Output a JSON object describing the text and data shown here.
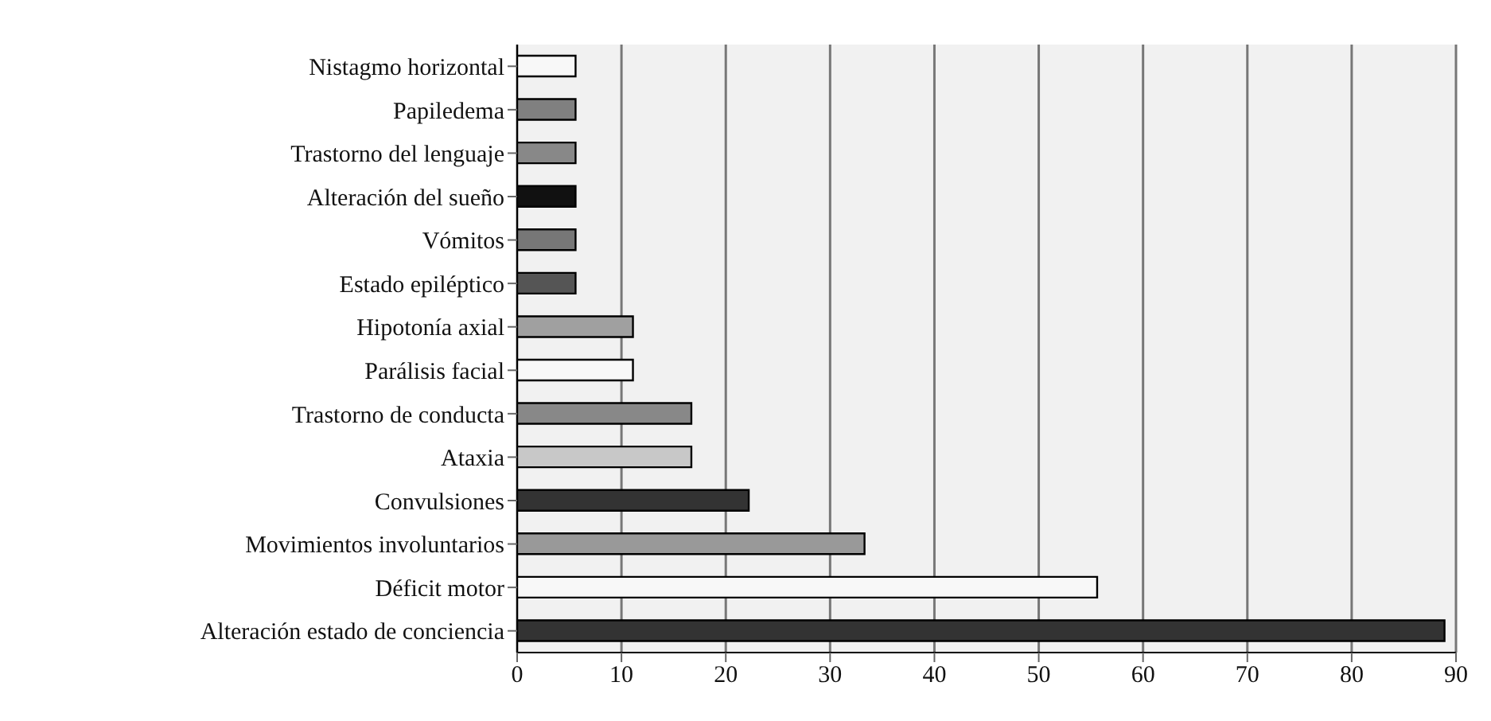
{
  "chart_data": {
    "type": "bar",
    "orientation": "horizontal",
    "categories": [
      "Nistagmo horizontal",
      "Papiledema",
      "Trastorno del lenguaje",
      "Alteración del sueño",
      "Vómitos",
      "Estado epiléptico",
      "Hipotonía axial",
      "Parálisis facial",
      "Trastorno de conducta",
      "Ataxia",
      "Convulsiones",
      "Movimientos involuntarios",
      "Déficit motor",
      "Alteración estado de conciencia"
    ],
    "values": [
      5.6,
      5.6,
      5.6,
      5.6,
      5.6,
      5.6,
      11.1,
      11.1,
      16.7,
      16.7,
      22.2,
      33.3,
      55.6,
      88.9
    ],
    "colors": [
      "#f8f8f8",
      "#808080",
      "#888888",
      "#111111",
      "#777777",
      "#555555",
      "#a0a0a0",
      "#f8f8f8",
      "#888888",
      "#c8c8c8",
      "#333333",
      "#999999",
      "#f8f8f8",
      "#333333"
    ],
    "xlim": [
      0,
      90
    ],
    "xticks": [
      0,
      10,
      20,
      30,
      40,
      50,
      60,
      70,
      80,
      90
    ],
    "grid": "x"
  }
}
